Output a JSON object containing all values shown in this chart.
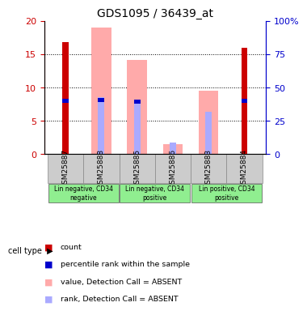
{
  "title": "GDS1095 / 36439_at",
  "samples": [
    "GSM25887",
    "GSM25888",
    "GSM25885",
    "GSM25886",
    "GSM25883",
    "GSM25884"
  ],
  "group_labels": [
    "Lin negative, CD34\nnegative",
    "Lin negative, CD34\npositive",
    "Lin positive, CD34\npositive"
  ],
  "group_ranges": [
    [
      0,
      1
    ],
    [
      2,
      3
    ],
    [
      4,
      5
    ]
  ],
  "count_values": [
    16.8,
    0,
    0,
    0,
    0,
    16.0
  ],
  "rank_values": [
    8.0,
    8.1,
    7.9,
    0,
    0,
    8.0
  ],
  "value_absent": [
    0,
    19.0,
    14.2,
    1.5,
    9.5,
    0
  ],
  "rank_absent": [
    0,
    8.5,
    7.9,
    1.7,
    6.3,
    0
  ],
  "ylim": [
    0,
    20
  ],
  "yticks": [
    0,
    5,
    10,
    15,
    20
  ],
  "y2ticks": [
    0,
    25,
    50,
    75,
    100
  ],
  "y2labels": [
    "0",
    "25",
    "50",
    "75",
    "100%"
  ],
  "count_color": "#cc0000",
  "rank_color": "#0000cc",
  "value_absent_color": "#ffaaaa",
  "rank_absent_color": "#aaaaff",
  "bg_color": "#ffffff",
  "ylabel_color": "#cc0000",
  "y2label_color": "#0000cc",
  "sample_bg_color": "#cccccc",
  "group_bg_color": "#90ee90",
  "legend_items": [
    {
      "color": "#cc0000",
      "label": "count"
    },
    {
      "color": "#0000cc",
      "label": "percentile rank within the sample"
    },
    {
      "color": "#ffaaaa",
      "label": "value, Detection Call = ABSENT"
    },
    {
      "color": "#aaaaff",
      "label": "rank, Detection Call = ABSENT"
    }
  ]
}
